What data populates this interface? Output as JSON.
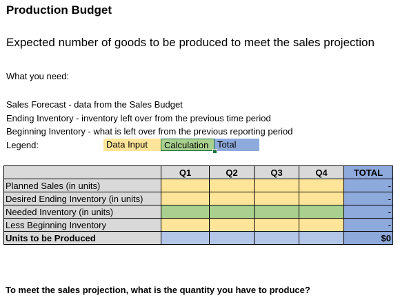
{
  "sheet": {
    "title": "Production Budget",
    "subtitle": "Expected number of goods to be produced to meet the sales projection",
    "what_you_need": "What you need:",
    "needs": [
      "Sales Forecast - data from the Sales Budget",
      "Ending Inventory - inventory left over from the previous time period",
      "Beginning Inventory - what is left over from the previous reporting period"
    ],
    "legend_label": "Legend:",
    "legend": {
      "data_input": "Data Input",
      "calculation": "Calculation",
      "total": "Total"
    },
    "colors": {
      "data_input": "#FFE599",
      "calculation": "#A9D08E",
      "total": "#8EA9DB",
      "label_fill": "#D9D9D9",
      "output_row": "#B4C6E7"
    },
    "table": {
      "headers": [
        "",
        "Q1",
        "Q2",
        "Q3",
        "Q4",
        "TOTAL"
      ],
      "rows": [
        {
          "label": "Planned Sales (in units)",
          "total": "-"
        },
        {
          "label": "Desired Ending Inventory (in units)",
          "total": "-"
        },
        {
          "label": "Needed Inventory (in units)",
          "total": "-"
        },
        {
          "label": "Less Beginning Inventory",
          "total": "-"
        },
        {
          "label": "Units to be Produced",
          "total": "$0"
        }
      ]
    },
    "question": "To meet the sales projection, what is the quantity you have to produce?"
  }
}
